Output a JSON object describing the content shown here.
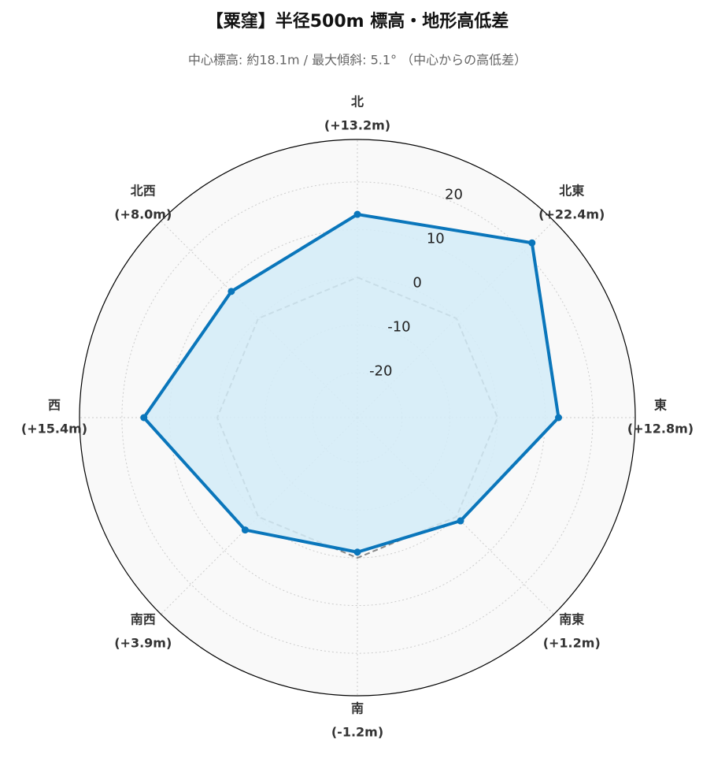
{
  "chart_data": {
    "type": "radar",
    "title": "【粟窪】半径500m 標高・地形高低差",
    "subtitle": "中心標高: 約18.1m / 最大傾斜: 5.1° （中心からの高低差）",
    "categories": [
      "北",
      "北東",
      "東",
      "南東",
      "南",
      "南西",
      "西",
      "北西"
    ],
    "values": [
      13.2,
      22.4,
      12.8,
      1.2,
      -1.2,
      3.9,
      15.4,
      8.0
    ],
    "value_labels": [
      "(+13.2m)",
      "(+22.4m)",
      "(+12.8m)",
      "(+1.2m)",
      "(-1.2m)",
      "(+3.9m)",
      "(+15.4m)",
      "(+8.0m)"
    ],
    "color": "#0a76bb",
    "fill_color": "#d3ecf8",
    "reference": 0,
    "reference_color": "#888888",
    "ylim": [
      -29.4,
      28.9
    ],
    "yticks": [
      -20,
      -10,
      0,
      10,
      20
    ],
    "grid": true
  }
}
